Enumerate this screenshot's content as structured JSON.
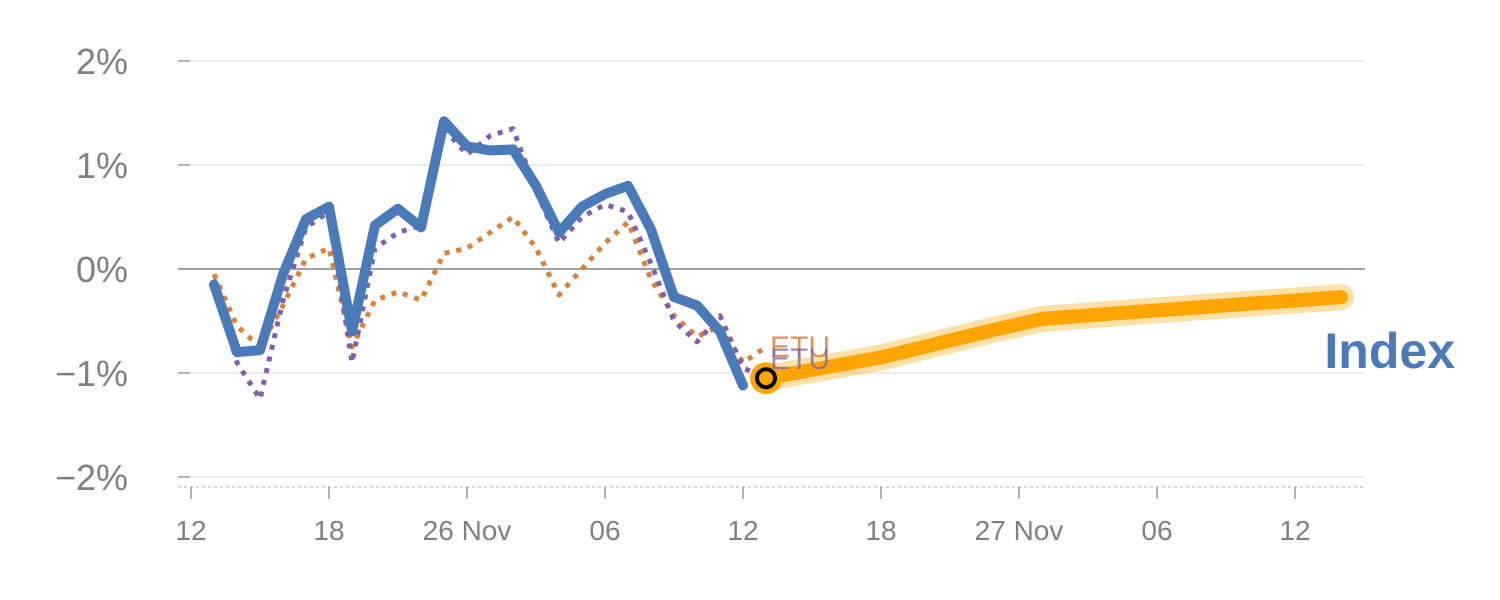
{
  "chart_data": {
    "type": "line",
    "title": "",
    "xlabel": "",
    "ylabel": "",
    "ylim": [
      -2,
      2
    ],
    "y_ticks": [
      2,
      1,
      0,
      -1,
      -2
    ],
    "y_tick_labels": [
      "2%",
      "1%",
      "0%",
      "−1%",
      "−2%"
    ],
    "x_ticks": [
      {
        "x": 0,
        "label": "12"
      },
      {
        "x": 6,
        "label": "18"
      },
      {
        "x": 12,
        "label": "26 Nov"
      },
      {
        "x": 18,
        "label": "06"
      },
      {
        "x": 24,
        "label": "12"
      },
      {
        "x": 30,
        "label": "18"
      },
      {
        "x": 36,
        "label": "27 Nov"
      },
      {
        "x": 42,
        "label": "06"
      },
      {
        "x": 48,
        "label": "12"
      }
    ],
    "xlim": [
      -0.5,
      51
    ],
    "grid": true,
    "series": [
      {
        "name": "Index",
        "style": "solid",
        "color": "#4a7ab8",
        "x": [
          1,
          2,
          3,
          4,
          5,
          6,
          7,
          8,
          9,
          10,
          11,
          12,
          13,
          14,
          15,
          16,
          17,
          18,
          19,
          20,
          21,
          22,
          23,
          24
        ],
        "y": [
          -0.15,
          -0.8,
          -0.78,
          -0.05,
          0.48,
          0.6,
          -0.6,
          0.42,
          0.58,
          0.4,
          1.42,
          1.18,
          1.14,
          1.15,
          0.8,
          0.35,
          0.6,
          0.72,
          0.8,
          0.38,
          -0.27,
          -0.35,
          -0.6,
          -1.12
        ]
      },
      {
        "name": "",
        "style": "dotted",
        "color": "#8060a8",
        "x": [
          1,
          2,
          3,
          4,
          5,
          6,
          7,
          8,
          9,
          10,
          11,
          12,
          13,
          14,
          15,
          16,
          17,
          18,
          19,
          20,
          21,
          22,
          23,
          24,
          25
        ],
        "y": [
          -0.1,
          -0.9,
          -1.25,
          -0.3,
          0.4,
          0.55,
          -0.9,
          0.2,
          0.35,
          0.42,
          1.35,
          1.1,
          1.28,
          1.35,
          0.75,
          0.25,
          0.5,
          0.62,
          0.55,
          0.05,
          -0.5,
          -0.7,
          -0.45,
          -0.95,
          -1.05
        ]
      },
      {
        "name": "",
        "style": "dotted",
        "color": "#d9823b",
        "x": [
          1,
          2,
          3,
          4,
          5,
          6,
          7,
          8,
          9,
          10,
          11,
          12,
          13,
          14,
          15,
          16,
          17,
          18,
          19,
          20,
          21,
          22,
          23,
          24,
          25
        ],
        "y": [
          -0.05,
          -0.55,
          -0.75,
          -0.35,
          0.1,
          0.2,
          -0.75,
          -0.3,
          -0.22,
          -0.3,
          0.15,
          0.2,
          0.35,
          0.5,
          0.2,
          -0.25,
          0.0,
          0.25,
          0.45,
          -0.1,
          -0.45,
          -0.65,
          -0.55,
          -0.9,
          -0.75
        ]
      },
      {
        "name": "",
        "style": "forecast",
        "color": "#ffa500",
        "x": [
          25,
          30,
          35,
          37,
          40,
          45,
          50
        ],
        "y": [
          -1.05,
          -0.85,
          -0.58,
          -0.48,
          -0.43,
          -0.35,
          -0.27
        ]
      }
    ],
    "end_marker": {
      "x": 25,
      "y": -1.05,
      "color": "#ffa500"
    },
    "labels": {
      "index": "Index",
      "etu_1": "ETU",
      "etu_2": "ETU"
    },
    "colors": {
      "index": "#4a7ab8",
      "purple": "#8060a8",
      "orange_dotted": "#d9823b",
      "forecast": "#ffa500",
      "zero_line": "#808080",
      "grid": "#e6e6e6",
      "tick_text": "#808080"
    }
  }
}
